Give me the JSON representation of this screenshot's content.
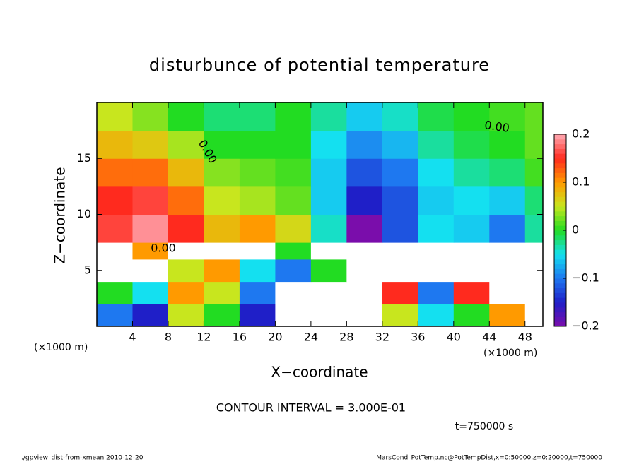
{
  "chart_data": {
    "type": "heatmap",
    "title": "disturbunce of potential temperature",
    "xlabel": "X−coordinate",
    "ylabel": "Z−coordinate",
    "x_unit_left": "(×1000 m)",
    "x_unit_right": "(×1000 m)",
    "xlim": [
      0,
      50
    ],
    "xticks": [
      4,
      8,
      12,
      16,
      20,
      24,
      28,
      32,
      36,
      40,
      44,
      48
    ],
    "ylim": [
      0,
      20
    ],
    "yticks": [
      5,
      10,
      15
    ],
    "xbins": [
      0,
      4,
      8,
      12,
      16,
      20,
      24,
      28,
      32,
      36,
      40,
      44,
      48,
      50
    ],
    "ybins": [
      0,
      2,
      4,
      6,
      7.5,
      10,
      12.5,
      15,
      17.5,
      20
    ],
    "z": [
      [
        -0.1,
        -0.15,
        0.05,
        0.0,
        -0.15,
        0.5,
        0.5,
        0.5,
        0.05,
        -0.05,
        0.0,
        0.1,
        0.5
      ],
      [
        0.0,
        -0.05,
        0.1,
        0.05,
        -0.1,
        0.5,
        0.5,
        0.5,
        0.15,
        -0.1,
        0.15,
        0.5,
        0.5
      ],
      [
        0.5,
        0.5,
        0.05,
        0.1,
        -0.05,
        -0.1,
        0.0,
        0.5,
        0.5,
        0.5,
        0.5,
        0.5,
        0.5
      ],
      [
        0.5,
        0.1,
        0.5,
        0.5,
        0.5,
        0.0,
        0.5,
        0.5,
        0.5,
        0.5,
        0.5,
        0.5,
        0.5
      ],
      [
        0.16,
        0.19,
        0.15,
        0.08,
        0.1,
        0.06,
        -0.04,
        -0.2,
        -0.12,
        -0.05,
        -0.06,
        -0.1,
        -0.03
      ],
      [
        0.15,
        0.16,
        0.12,
        0.05,
        0.04,
        0.02,
        -0.06,
        -0.15,
        -0.12,
        -0.06,
        -0.05,
        -0.06,
        -0.02
      ],
      [
        0.12,
        0.12,
        0.08,
        0.03,
        0.02,
        0.01,
        -0.06,
        -0.12,
        -0.1,
        -0.05,
        -0.03,
        -0.02,
        0.01
      ],
      [
        0.08,
        0.07,
        0.04,
        0.0,
        0.0,
        0.0,
        -0.05,
        -0.09,
        -0.07,
        -0.03,
        -0.01,
        0.0,
        0.02
      ],
      [
        0.05,
        0.03,
        0.0,
        -0.02,
        -0.02,
        0.0,
        -0.03,
        -0.06,
        -0.04,
        -0.01,
        0.0,
        0.01,
        0.02
      ]
    ],
    "clim": [
      -0.2,
      0.2
    ],
    "colors": [
      "#7a0dab",
      "#1f1fc8",
      "#1e78f0",
      "#14e0f0",
      "#22dc22",
      "#c8e61e",
      "#ff9a00",
      "#ff2a1e",
      "#ffaab4"
    ],
    "out_of_range_color": "#ffffff",
    "cticks": [
      {
        "value": -0.2,
        "label": "−0.2"
      },
      {
        "value": -0.1,
        "label": "−0.1"
      },
      0,
      0.1,
      0.2
    ],
    "contour_labels": [
      "0.00",
      "0.00",
      "0.00"
    ],
    "contour_interval": "CONTOUR INTERVAL = 3.000E-01",
    "time_label": "t=750000 s",
    "footer_left": "./gpview_dist-from-xmean  2010-12-20",
    "footer_right": "MarsCond_PotTemp.nc@PotTempDist,x=0:50000,z=0:20000,t=750000"
  }
}
